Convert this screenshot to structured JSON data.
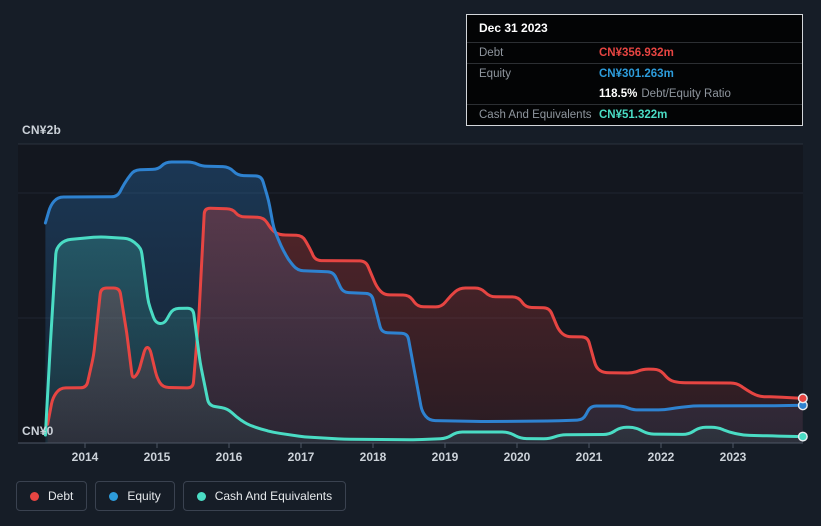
{
  "colors": {
    "debt": "#e64542",
    "equity_line": "#2e82d0",
    "equity": "#2d9cdb",
    "cash": "#4adcc4",
    "page_bg": "#161d27",
    "plot_bg": "#13171f",
    "tooltip_bg": "#030405"
  },
  "tooltip": {
    "date": "Dec 31 2023",
    "debt_label": "Debt",
    "debt_value": "CN¥356.932m",
    "equity_label": "Equity",
    "equity_value": "CN¥301.263m",
    "ratio_value": "118.5%",
    "ratio_label": "Debt/Equity Ratio",
    "cash_label": "Cash And Equivalents",
    "cash_value": "CN¥51.322m"
  },
  "legend": {
    "items": [
      {
        "label": "Debt"
      },
      {
        "label": "Equity"
      },
      {
        "label": "Cash And Equivalents"
      }
    ]
  },
  "chart_data": {
    "type": "area",
    "unit": "CN¥ millions",
    "x_unit": "year",
    "x_range": [
      2013.45,
      2023.97
    ],
    "ylim": [
      0,
      2390
    ],
    "y_gridline_values": [
      2000,
      1000
    ],
    "y_max_label": "CN¥2b",
    "y_zero_label": "CN¥0",
    "x_tick_labels": [
      "2014",
      "2015",
      "2016",
      "2017",
      "2018",
      "2019",
      "2020",
      "2021",
      "2022",
      "2023"
    ],
    "grid": true,
    "legend_position": "bottom-left",
    "end_markers": true,
    "series": [
      {
        "name": "Debt",
        "color": "#e64542",
        "points": [
          [
            2013.48,
            150
          ],
          [
            2013.55,
            360
          ],
          [
            2013.65,
            440
          ],
          [
            2014.02,
            442
          ],
          [
            2014.12,
            700
          ],
          [
            2014.22,
            1240
          ],
          [
            2014.48,
            1240
          ],
          [
            2014.58,
            880
          ],
          [
            2014.66,
            510
          ],
          [
            2014.74,
            560
          ],
          [
            2014.84,
            768
          ],
          [
            2014.9,
            760
          ],
          [
            2015.0,
            520
          ],
          [
            2015.08,
            445
          ],
          [
            2015.5,
            440
          ],
          [
            2015.58,
            1000
          ],
          [
            2015.66,
            1880
          ],
          [
            2016.05,
            1872
          ],
          [
            2016.14,
            1810
          ],
          [
            2016.48,
            1805
          ],
          [
            2016.6,
            1700
          ],
          [
            2016.7,
            1665
          ],
          [
            2017.02,
            1660
          ],
          [
            2017.12,
            1560
          ],
          [
            2017.2,
            1460
          ],
          [
            2017.9,
            1456
          ],
          [
            2018.05,
            1250
          ],
          [
            2018.15,
            1185
          ],
          [
            2018.5,
            1184
          ],
          [
            2018.62,
            1090
          ],
          [
            2018.95,
            1088
          ],
          [
            2019.08,
            1180
          ],
          [
            2019.2,
            1240
          ],
          [
            2019.5,
            1240
          ],
          [
            2019.62,
            1170
          ],
          [
            2020.02,
            1168
          ],
          [
            2020.12,
            1085
          ],
          [
            2020.45,
            1080
          ],
          [
            2020.58,
            900
          ],
          [
            2020.68,
            850
          ],
          [
            2020.98,
            848
          ],
          [
            2021.1,
            600
          ],
          [
            2021.2,
            562
          ],
          [
            2021.62,
            560
          ],
          [
            2021.75,
            592
          ],
          [
            2021.98,
            590
          ],
          [
            2022.12,
            500
          ],
          [
            2022.25,
            482
          ],
          [
            2023.05,
            480
          ],
          [
            2023.2,
            420
          ],
          [
            2023.35,
            372
          ],
          [
            2023.6,
            368
          ],
          [
            2023.97,
            356.932
          ]
        ]
      },
      {
        "name": "Equity",
        "color": "#2e82d0",
        "points": [
          [
            2013.45,
            1760
          ],
          [
            2013.52,
            1900
          ],
          [
            2013.62,
            1968
          ],
          [
            2014.45,
            1970
          ],
          [
            2014.55,
            2080
          ],
          [
            2014.68,
            2184
          ],
          [
            2015.02,
            2190
          ],
          [
            2015.12,
            2248
          ],
          [
            2015.5,
            2248
          ],
          [
            2015.62,
            2215
          ],
          [
            2016.0,
            2210
          ],
          [
            2016.12,
            2140
          ],
          [
            2016.45,
            2136
          ],
          [
            2016.55,
            1940
          ],
          [
            2016.62,
            1720
          ],
          [
            2016.72,
            1580
          ],
          [
            2016.82,
            1470
          ],
          [
            2016.95,
            1380
          ],
          [
            2017.45,
            1368
          ],
          [
            2017.58,
            1205
          ],
          [
            2017.98,
            1195
          ],
          [
            2018.12,
            885
          ],
          [
            2018.48,
            875
          ],
          [
            2018.58,
            560
          ],
          [
            2018.68,
            250
          ],
          [
            2018.78,
            180
          ],
          [
            2019.5,
            172
          ],
          [
            2020.5,
            176
          ],
          [
            2020.92,
            185
          ],
          [
            2021.02,
            296
          ],
          [
            2021.48,
            296
          ],
          [
            2021.6,
            265
          ],
          [
            2022.05,
            265
          ],
          [
            2022.2,
            280
          ],
          [
            2022.45,
            297
          ],
          [
            2023.5,
            298
          ],
          [
            2023.97,
            301.263
          ]
        ]
      },
      {
        "name": "Cash And Equivalents",
        "color": "#4adcc4",
        "points": [
          [
            2013.45,
            64
          ],
          [
            2013.52,
            800
          ],
          [
            2013.6,
            1560
          ],
          [
            2013.72,
            1624
          ],
          [
            2014.2,
            1650
          ],
          [
            2014.62,
            1636
          ],
          [
            2014.78,
            1560
          ],
          [
            2014.88,
            1120
          ],
          [
            2014.98,
            960
          ],
          [
            2015.1,
            952
          ],
          [
            2015.22,
            1075
          ],
          [
            2015.5,
            1080
          ],
          [
            2015.6,
            640
          ],
          [
            2015.72,
            300
          ],
          [
            2015.98,
            275
          ],
          [
            2016.1,
            210
          ],
          [
            2016.25,
            150
          ],
          [
            2016.45,
            110
          ],
          [
            2016.62,
            85
          ],
          [
            2017.05,
            48
          ],
          [
            2017.6,
            30
          ],
          [
            2018.6,
            26
          ],
          [
            2019.02,
            36
          ],
          [
            2019.16,
            88
          ],
          [
            2019.88,
            88
          ],
          [
            2020.05,
            36
          ],
          [
            2020.45,
            34
          ],
          [
            2020.6,
            66
          ],
          [
            2021.28,
            68
          ],
          [
            2021.44,
            126
          ],
          [
            2021.64,
            126
          ],
          [
            2021.82,
            72
          ],
          [
            2022.38,
            68
          ],
          [
            2022.54,
            126
          ],
          [
            2022.78,
            126
          ],
          [
            2022.95,
            86
          ],
          [
            2023.15,
            62
          ],
          [
            2023.55,
            56
          ],
          [
            2023.97,
            51.322
          ]
        ]
      }
    ]
  }
}
